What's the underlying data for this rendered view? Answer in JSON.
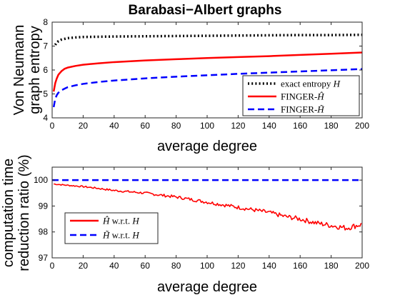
{
  "chart_data": [
    {
      "type": "line",
      "title": "Barabasi−Albert graphs",
      "xlabel": "average degree",
      "ylabel": [
        "Von Neumann",
        "graph entropy"
      ],
      "xlim": [
        0,
        200
      ],
      "ylim": [
        4,
        8
      ],
      "xticks": [
        "0",
        "20",
        "40",
        "60",
        "80",
        "100",
        "120",
        "140",
        "160",
        "180",
        "200"
      ],
      "yticks": [
        "4",
        "5",
        "6",
        "7",
        "8"
      ],
      "grid": false,
      "legend_position": "bottom-right",
      "series": [
        {
          "name": "exact entropy H",
          "legend": {
            "pre": "exact entropy ",
            "sym": "H",
            "post": ""
          },
          "color": "#000000",
          "style": "dotted",
          "x": [
            2,
            3,
            4,
            6,
            8,
            10,
            15,
            20,
            30,
            40,
            60,
            80,
            100,
            120,
            140,
            160,
            180,
            200
          ],
          "y": [
            7.05,
            7.15,
            7.2,
            7.27,
            7.3,
            7.33,
            7.36,
            7.38,
            7.39,
            7.4,
            7.41,
            7.42,
            7.43,
            7.44,
            7.45,
            7.46,
            7.46,
            7.47
          ]
        },
        {
          "name": "FINGER-Ĥ",
          "legend": {
            "pre": "FINGER-",
            "sym": "Ĥ",
            "post": ""
          },
          "color": "#ff0000",
          "style": "solid",
          "x": [
            1,
            2,
            3,
            4,
            6,
            8,
            10,
            15,
            20,
            30,
            40,
            60,
            80,
            100,
            120,
            140,
            160,
            180,
            200
          ],
          "y": [
            5.1,
            5.45,
            5.65,
            5.8,
            5.95,
            6.05,
            6.1,
            6.17,
            6.22,
            6.28,
            6.33,
            6.4,
            6.45,
            6.5,
            6.54,
            6.58,
            6.63,
            6.68,
            6.73
          ]
        },
        {
          "name": "FINGER-H̃",
          "legend": {
            "pre": "FINGER-",
            "sym": "H̃",
            "post": ""
          },
          "color": "#0000ff",
          "style": "dashed",
          "x": [
            1,
            2,
            3,
            4,
            6,
            8,
            10,
            15,
            20,
            30,
            40,
            60,
            80,
            100,
            120,
            140,
            160,
            180,
            200
          ],
          "y": [
            4.45,
            4.8,
            4.95,
            5.05,
            5.15,
            5.22,
            5.28,
            5.36,
            5.42,
            5.5,
            5.56,
            5.65,
            5.72,
            5.78,
            5.84,
            5.89,
            5.94,
            5.99,
            6.04
          ]
        }
      ]
    },
    {
      "type": "line",
      "title": "",
      "xlabel": "average degree",
      "ylabel": [
        "computation time",
        "reduction ratio (%)"
      ],
      "xlim": [
        0,
        200
      ],
      "ylim": [
        97,
        100.5
      ],
      "xticks": [
        "0",
        "20",
        "40",
        "60",
        "80",
        "100",
        "120",
        "140",
        "160",
        "180",
        "200"
      ],
      "yticks": [
        "97",
        "98",
        "99",
        "100"
      ],
      "grid": false,
      "legend_position": "bottom-left",
      "series": [
        {
          "name": "Ĥ w.r.t. H",
          "legend": {
            "pre": "",
            "sym": "Ĥ",
            "post": " w.r.t. H"
          },
          "color": "#ff0000",
          "style": "solid",
          "noisy": true,
          "x": [
            1,
            10,
            20,
            30,
            40,
            50,
            60,
            70,
            80,
            90,
            100,
            110,
            120,
            130,
            140,
            150,
            160,
            170,
            180,
            190,
            200
          ],
          "y": [
            99.85,
            99.8,
            99.75,
            99.68,
            99.6,
            99.55,
            99.5,
            99.42,
            99.35,
            99.25,
            99.15,
            99.05,
            98.95,
            98.85,
            98.75,
            98.6,
            98.5,
            98.35,
            98.25,
            98.15,
            98.3
          ]
        },
        {
          "name": "H̃ w.r.t. H",
          "legend": {
            "pre": "",
            "sym": "H̃",
            "post": " w.r.t. H"
          },
          "color": "#0000ff",
          "style": "dashed",
          "x": [
            0,
            200
          ],
          "y": [
            100,
            100
          ]
        }
      ]
    }
  ]
}
